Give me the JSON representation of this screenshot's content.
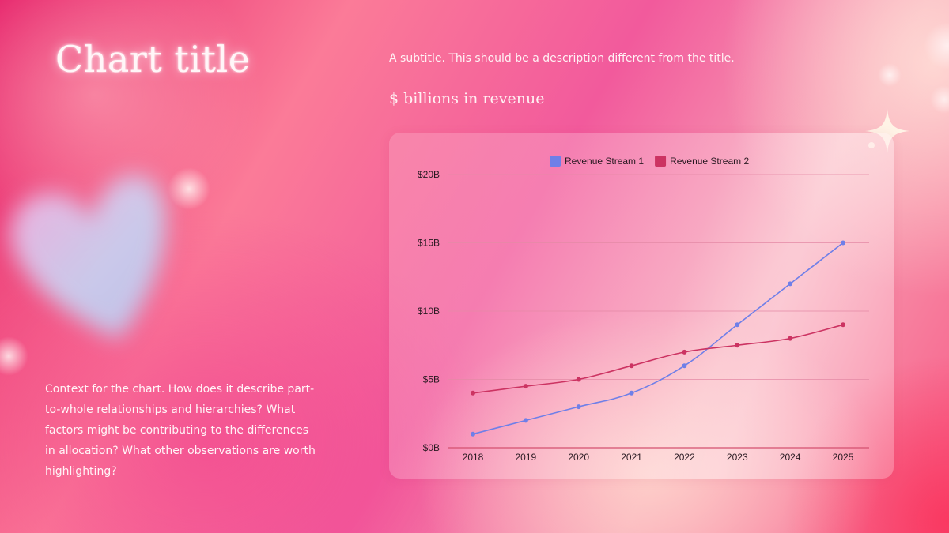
{
  "slide": {
    "title": "Chart title",
    "subtitle": "A subtitle. This should be a description different from the title.",
    "unit_label": "$ billions in revenue",
    "context": "Context for the chart. How does it describe part-to-whole relationships and hierarchies? What factors might be contributing to the differences in allocation? What other observations are worth highlighting?"
  },
  "colors": {
    "series_1": "#6f7fe8",
    "series_2": "#cc3362",
    "gridline": "#e58aa6",
    "axis": "#d4506f"
  },
  "chart_data": {
    "type": "line",
    "title": "",
    "xlabel": "",
    "ylabel": "",
    "categories": [
      "2018",
      "2019",
      "2020",
      "2021",
      "2022",
      "2023",
      "2024",
      "2025"
    ],
    "series": [
      {
        "name": "Revenue Stream 1",
        "values": [
          1,
          2,
          3,
          4,
          6,
          9,
          12,
          15
        ]
      },
      {
        "name": "Revenue Stream 2",
        "values": [
          4,
          4.5,
          5,
          6,
          7,
          7.5,
          8,
          9
        ]
      }
    ],
    "ylim": [
      0,
      20
    ],
    "y_ticks": [
      0,
      5,
      10,
      15,
      20
    ],
    "y_tick_labels": [
      "$0B",
      "$5B",
      "$10B",
      "$15B",
      "$20B"
    ],
    "grid": true,
    "legend_position": "top-center"
  }
}
